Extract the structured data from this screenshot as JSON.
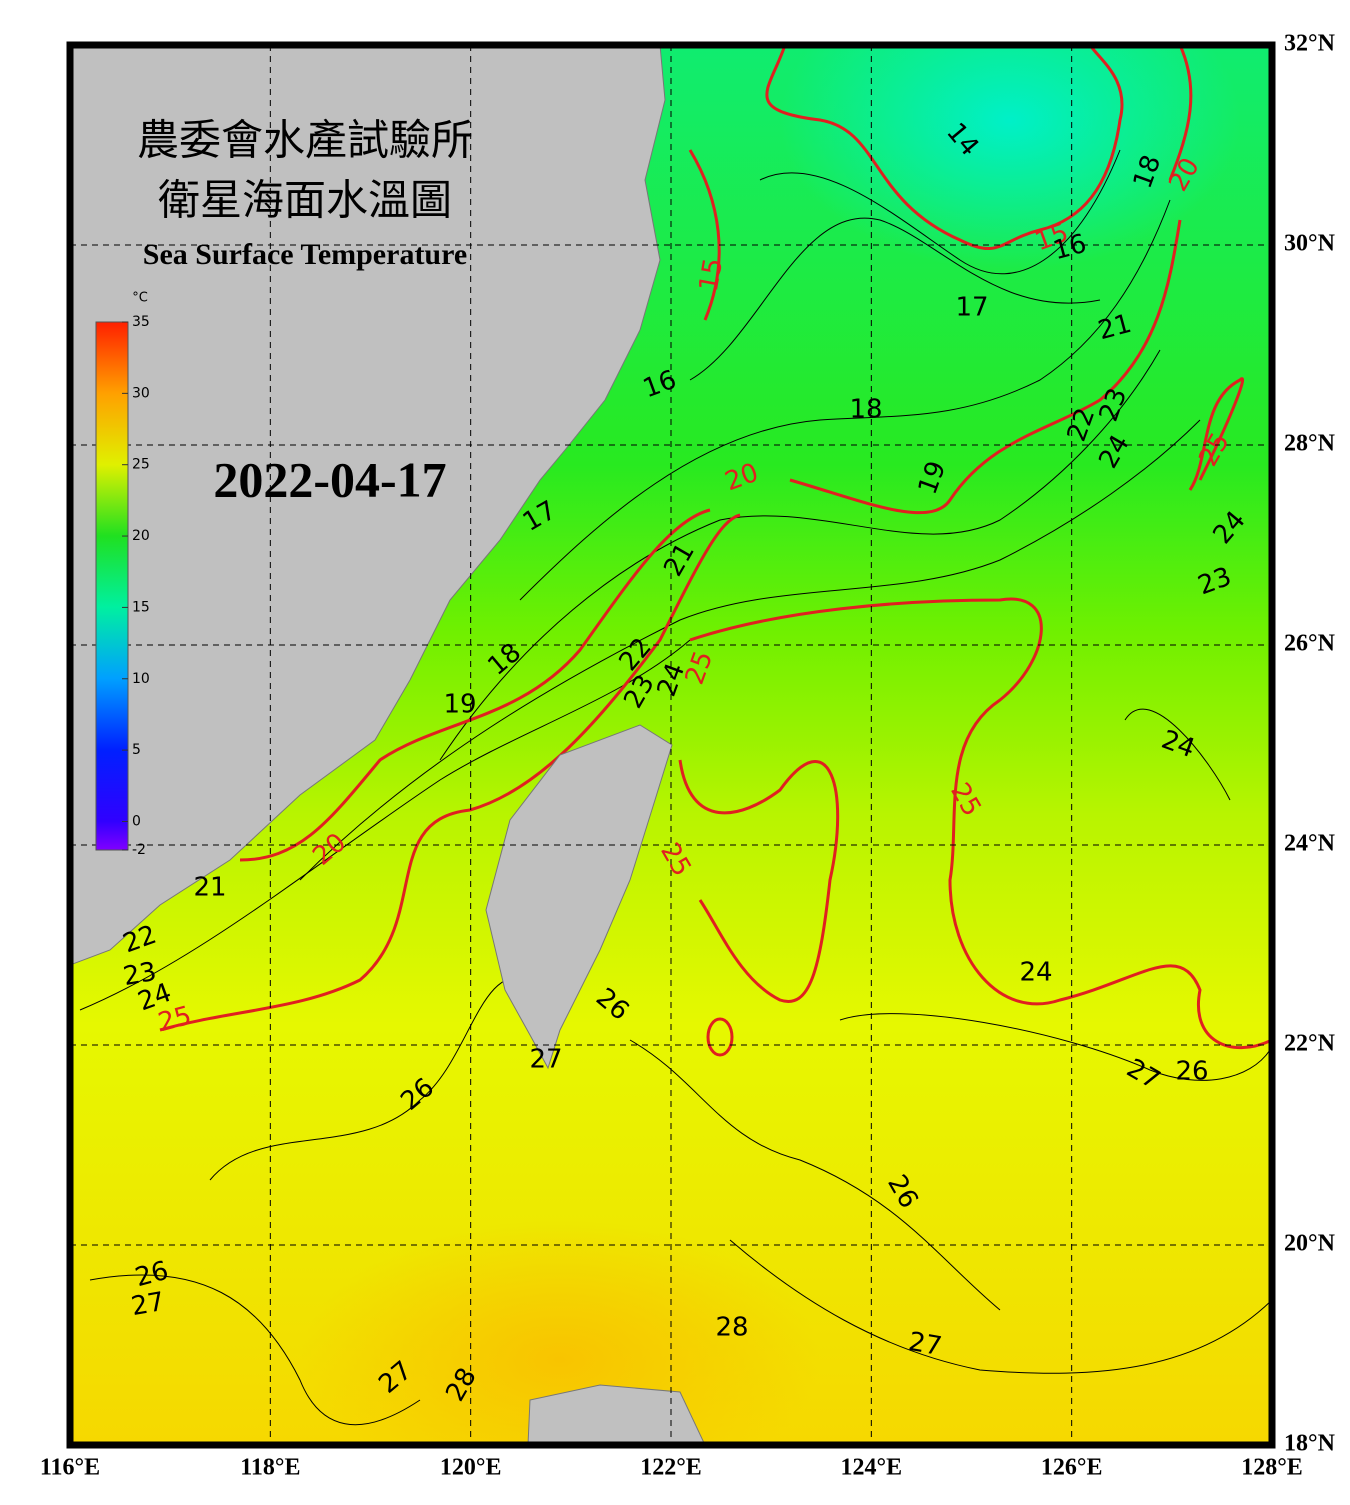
{
  "header": {
    "title_zh_1": "農委會水產試驗所",
    "title_zh_2": "衛星海面水溫圖",
    "title_en": "Sea Surface Temperature",
    "date": "2022-04-17"
  },
  "colorbar": {
    "unit": "°C",
    "ticks": [
      35,
      30,
      25,
      20,
      15,
      10,
      5,
      0,
      -2
    ]
  },
  "lat_ticks": [
    {
      "value": 32,
      "label": "32°N"
    },
    {
      "value": 30,
      "label": "30°N"
    },
    {
      "value": 28,
      "label": "28°N"
    },
    {
      "value": 26,
      "label": "26°N"
    },
    {
      "value": 24,
      "label": "24°N"
    },
    {
      "value": 22,
      "label": "22°N"
    },
    {
      "value": 20,
      "label": "20°N"
    },
    {
      "value": 18,
      "label": "18°N"
    }
  ],
  "lon_ticks": [
    {
      "value": 116,
      "label": "116°E"
    },
    {
      "value": 118,
      "label": "118°E"
    },
    {
      "value": 120,
      "label": "120°E"
    },
    {
      "value": 122,
      "label": "122°E"
    },
    {
      "value": 124,
      "label": "124°E"
    },
    {
      "value": 126,
      "label": "126°E"
    },
    {
      "value": 128,
      "label": "128°E"
    }
  ],
  "contour_labels": [
    {
      "value": 14,
      "color": "#000000"
    },
    {
      "value": 15,
      "color": "#e02020"
    },
    {
      "value": 16,
      "color": "#000000"
    },
    {
      "value": 17,
      "color": "#000000"
    },
    {
      "value": 18,
      "color": "#000000"
    },
    {
      "value": 19,
      "color": "#000000"
    },
    {
      "value": 20,
      "color": "#e02020"
    },
    {
      "value": 21,
      "color": "#000000"
    },
    {
      "value": 22,
      "color": "#000000"
    },
    {
      "value": 23,
      "color": "#000000"
    },
    {
      "value": 24,
      "color": "#000000"
    },
    {
      "value": 25,
      "color": "#e02020"
    },
    {
      "value": 24,
      "color": "#000000"
    },
    {
      "value": 23,
      "color": "#000000"
    },
    {
      "value": 16,
      "color": "#000000"
    },
    {
      "value": 17,
      "color": "#000000"
    },
    {
      "value": 18,
      "color": "#000000"
    },
    {
      "value": 19,
      "color": "#000000"
    },
    {
      "value": 20,
      "color": "#e02020"
    },
    {
      "value": 21,
      "color": "#000000"
    },
    {
      "value": 22,
      "color": "#000000"
    },
    {
      "value": 23,
      "color": "#000000"
    },
    {
      "value": 24,
      "color": "#000000"
    },
    {
      "value": 25,
      "color": "#e02020"
    },
    {
      "value": 21,
      "color": "#000000"
    },
    {
      "value": 22,
      "color": "#000000"
    },
    {
      "value": 23,
      "color": "#000000"
    },
    {
      "value": 24,
      "color": "#000000"
    },
    {
      "value": 25,
      "color": "#e02020"
    },
    {
      "value": 25,
      "color": "#e02020"
    },
    {
      "value": 25,
      "color": "#e02020"
    },
    {
      "value": 24,
      "color": "#000000"
    },
    {
      "value": 24,
      "color": "#000000"
    },
    {
      "value": 26,
      "color": "#000000"
    },
    {
      "value": 27,
      "color": "#000000"
    },
    {
      "value": 26,
      "color": "#000000"
    },
    {
      "value": 27,
      "color": "#000000"
    },
    {
      "value": 26,
      "color": "#000000"
    },
    {
      "value": 26,
      "color": "#000000"
    },
    {
      "value": 26,
      "color": "#000000"
    },
    {
      "value": 27,
      "color": "#000000"
    },
    {
      "value": 28,
      "color": "#000000"
    },
    {
      "value": 27,
      "color": "#000000"
    },
    {
      "value": 27,
      "color": "#000000"
    },
    {
      "value": 28,
      "color": "#000000"
    },
    {
      "value": 18,
      "color": "#000000"
    },
    {
      "value": 20,
      "color": "#e02020"
    },
    {
      "value": 15,
      "color": "#e02020"
    }
  ]
}
